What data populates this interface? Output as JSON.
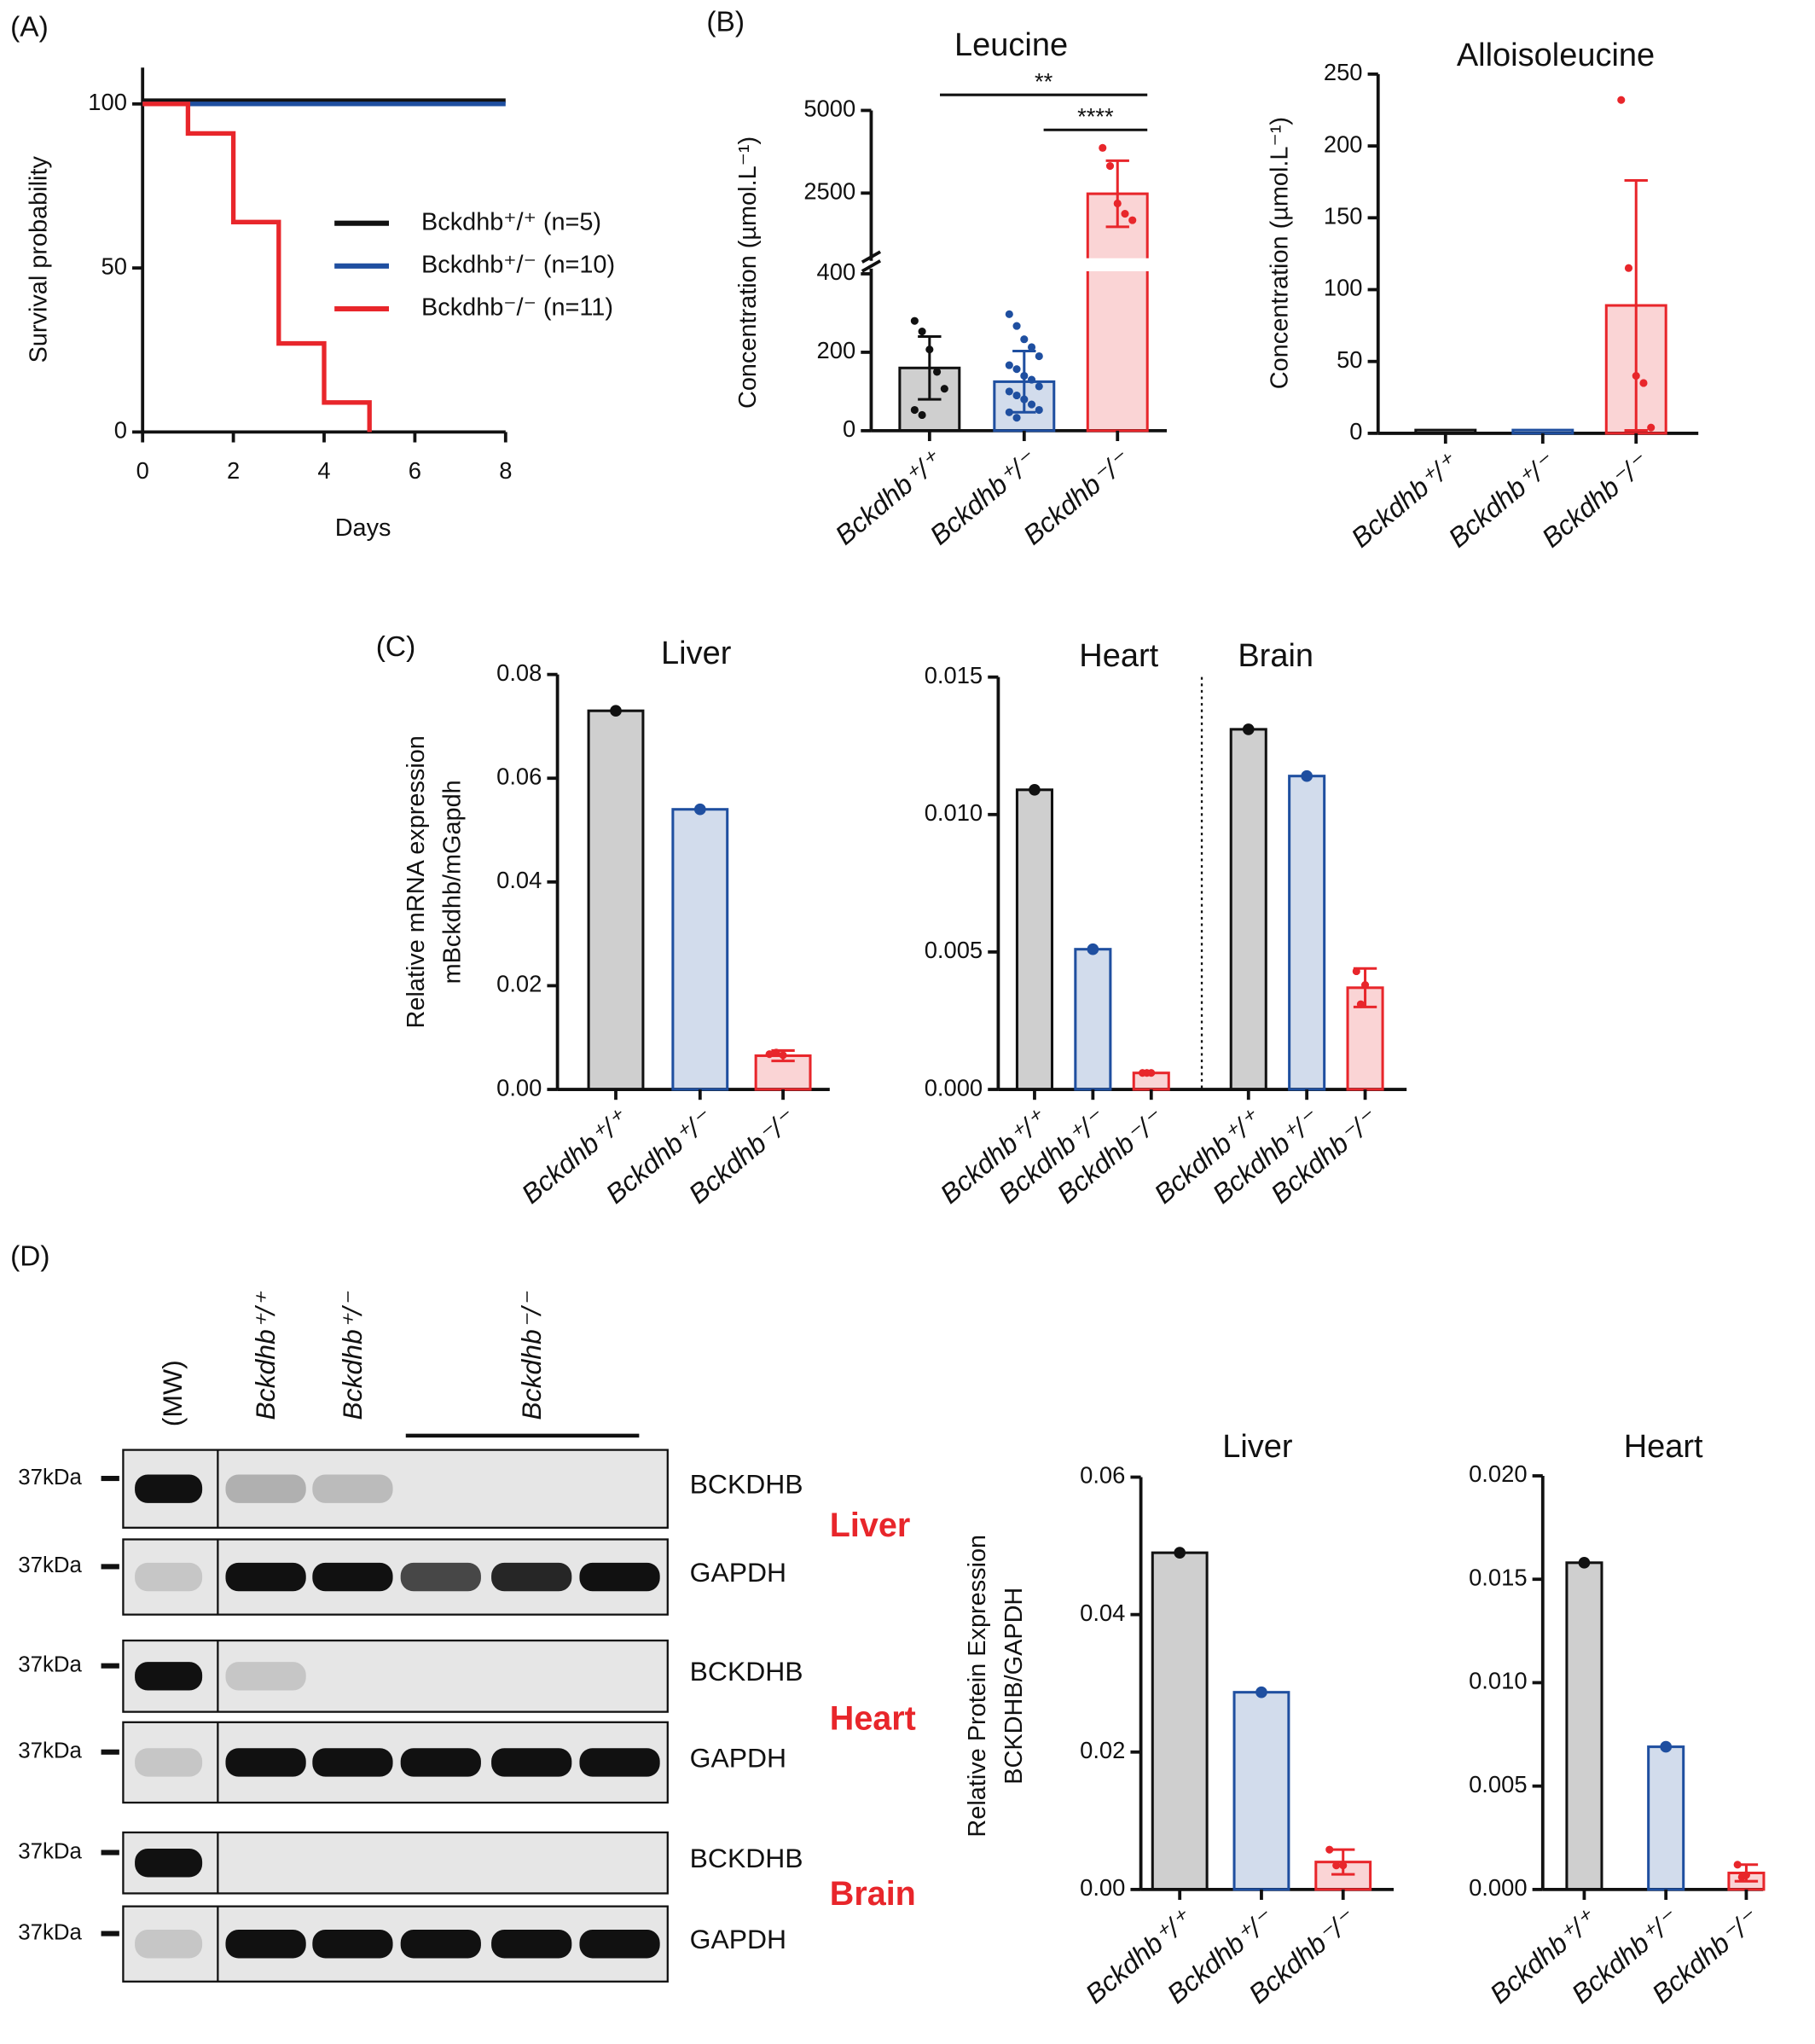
{
  "panel_labels": [
    "(A)",
    "(B)",
    "(C)",
    "(D)"
  ],
  "chart_data": [
    {
      "type": "line",
      "xlabel": "Days",
      "ylabel": "Survival probability",
      "xlim": [
        0,
        8
      ],
      "xticks": [
        0,
        2,
        4,
        6,
        8
      ],
      "ylim": [
        0,
        100
      ],
      "yticks": [
        0,
        50,
        100
      ],
      "series": [
        {
          "name": "Bckdhb⁺/⁺ (n=5)",
          "color": "#111111",
          "x": [
            0,
            8
          ],
          "values": [
            101,
            101
          ]
        },
        {
          "name": "Bckdhb⁺/⁻ (n=10)",
          "color": "#1f4fa0",
          "x": [
            0,
            8
          ],
          "values": [
            100,
            100
          ]
        },
        {
          "name": "Bckdhb⁻/⁻ (n=11)",
          "color": "#e8262b",
          "x": [
            0,
            1,
            1,
            2,
            2,
            3,
            3,
            4,
            4,
            5,
            5
          ],
          "values": [
            100,
            100,
            91,
            91,
            64,
            64,
            27,
            27,
            9,
            9,
            0
          ]
        }
      ]
    },
    {
      "type": "bar",
      "ylabel": "Concentration (µmol.L⁻¹)",
      "ylim": [
        0,
        5000
      ],
      "ybreak": [
        400,
        1000
      ],
      "yticks": [
        0,
        200,
        400,
        2500,
        5000
      ],
      "categories": [
        "Bckdhb⁺/⁺",
        "Bckdhb⁺/⁻",
        "Bckdhb⁻/⁻"
      ],
      "colors": [
        "#111111",
        "#1f4fa0",
        "#e8262b"
      ],
      "annotations": [
        "**",
        "****"
      ],
      "groups": [
        {
          "title": "Leucine",
          "values": [
            160,
            125,
            2480
          ],
          "errors": [
            80,
            78,
            1000
          ],
          "points": [
            [
              280,
              253,
              207,
              150,
              107,
              53,
              40
            ],
            [
              297,
              267,
              233,
              213,
              190,
              167,
              157,
              140,
              130,
              113,
              100,
              90,
              80,
              67,
              53,
              47,
              33
            ],
            [
              3867,
              3320,
              2187,
              1875,
              1680
            ]
          ]
        }
      ]
    },
    {
      "type": "bar",
      "ylabel": "Concentration (µmol.L⁻¹)",
      "ylim": [
        0,
        250
      ],
      "yticks": [
        0,
        50,
        100,
        150,
        200,
        250
      ],
      "categories": [
        "Bckdhb⁺/⁺",
        "Bckdhb⁺/⁻",
        "Bckdhb⁻/⁻"
      ],
      "colors": [
        "#111111",
        "#1f4fa0",
        "#e8262b"
      ],
      "groups": [
        {
          "title": "Alloisoleucine",
          "values": [
            0,
            0,
            89
          ],
          "errors": [
            null,
            null,
            87
          ],
          "points": [
            [],
            [],
            [
              232,
              115,
              40,
              35,
              4
            ]
          ]
        }
      ]
    },
    {
      "type": "bar",
      "ylabel": [
        "Relative mRNA expression",
        "mBckdhb/mGapdh"
      ],
      "ylim": [
        0,
        0.08
      ],
      "yticks": [
        {
          "value": 0,
          "label": "0.00"
        },
        {
          "value": 0.02,
          "label": "0.02"
        },
        {
          "value": 0.04,
          "label": "0.04"
        },
        {
          "value": 0.06,
          "label": "0.06"
        },
        {
          "value": 0.08,
          "label": "0.08"
        }
      ],
      "categories": [
        "Bckdhb⁺/⁺",
        "Bckdhb⁺/⁻",
        "Bckdhb⁻/⁻"
      ],
      "colors": [
        "#111111",
        "#1f4fa0",
        "#e8262b"
      ],
      "groups": [
        {
          "title": "Liver",
          "values": [
            0.073,
            0.054,
            0.0065
          ],
          "errors": [
            null,
            null,
            0.001
          ],
          "points": [
            [
              0.073
            ],
            [
              0.054
            ],
            [
              0.0068,
              0.0071,
              0.0066
            ]
          ]
        }
      ]
    },
    {
      "type": "bar",
      "ylim": [
        0,
        0.015
      ],
      "yticks": [
        {
          "value": 0,
          "label": "0.000"
        },
        {
          "value": 0.005,
          "label": "0.005"
        },
        {
          "value": 0.01,
          "label": "0.010"
        },
        {
          "value": 0.015,
          "label": "0.015"
        }
      ],
      "categories": [
        "Bckdhb⁺/⁺",
        "Bckdhb⁺/⁻",
        "Bckdhb⁻/⁻"
      ],
      "colors": [
        "#111111",
        "#1f4fa0",
        "#e8262b"
      ],
      "groups": [
        {
          "title": "Heart",
          "values": [
            0.0109,
            0.0051,
            0.0006
          ],
          "errors": [
            null,
            null,
            null
          ],
          "points": [
            [
              0.0109
            ],
            [
              0.0051
            ],
            [
              0.0006,
              0.0006,
              0.0006
            ]
          ]
        },
        {
          "title": "Brain",
          "values": [
            0.0131,
            0.0114,
            0.0037
          ],
          "errors": [
            null,
            null,
            0.0007
          ],
          "points": [
            [
              0.0131
            ],
            [
              0.0114
            ],
            [
              0.0043,
              0.0031,
              0.0038
            ]
          ]
        }
      ]
    },
    {
      "type": "bar",
      "ylabel": [
        "Relative Protein Expression",
        "BCKDHB/GAPDH"
      ],
      "ylim": [
        0,
        0.06
      ],
      "yticks": [
        {
          "value": 0,
          "label": "0.00"
        },
        {
          "value": 0.02,
          "label": "0.02"
        },
        {
          "value": 0.04,
          "label": "0.04"
        },
        {
          "value": 0.06,
          "label": "0.06"
        }
      ],
      "categories": [
        "Bckdhb⁺/⁺",
        "Bckdhb⁺/⁻",
        "Bckdhb⁻/⁻"
      ],
      "colors": [
        "#111111",
        "#1f4fa0",
        "#e8262b"
      ],
      "groups": [
        {
          "title": "Liver",
          "values": [
            0.049,
            0.0287,
            0.004
          ],
          "errors": [
            null,
            null,
            0.0018
          ],
          "points": [
            [
              0.049
            ],
            [
              0.0287
            ],
            [
              0.0058,
              0.0035,
              0.0035
            ]
          ]
        }
      ]
    },
    {
      "type": "bar",
      "ylim": [
        0,
        0.02
      ],
      "yticks": [
        {
          "value": 0,
          "label": "0.000"
        },
        {
          "value": 0.005,
          "label": "0.005"
        },
        {
          "value": 0.01,
          "label": "0.010"
        },
        {
          "value": 0.015,
          "label": "0.015"
        },
        {
          "value": 0.02,
          "label": "0.020"
        }
      ],
      "categories": [
        "Bckdhb⁺/⁺",
        "Bckdhb⁺/⁻",
        "Bckdhb⁻/⁻"
      ],
      "colors": [
        "#111111",
        "#1f4fa0",
        "#e8262b"
      ],
      "groups": [
        {
          "title": "Heart",
          "values": [
            0.0158,
            0.0069,
            0.0008
          ],
          "errors": [
            null,
            null,
            0.0004
          ],
          "points": [
            [
              0.0158
            ],
            [
              0.0069
            ],
            [
              0.0012,
              0.0006,
              0.0007
            ]
          ]
        }
      ]
    }
  ],
  "blot": {
    "lanes": [
      "(MW)",
      "Bckdhb⁺/⁺",
      "Bckdhb⁺/⁻",
      "Bckdhb⁻/⁻"
    ],
    "marker": "37kDa",
    "rows": [
      "BCKDHB",
      "GAPDH",
      "BCKDHB",
      "GAPDH",
      "BCKDHB",
      "GAPDH"
    ],
    "tissues": [
      "Liver",
      "Heart",
      "Brain"
    ]
  }
}
